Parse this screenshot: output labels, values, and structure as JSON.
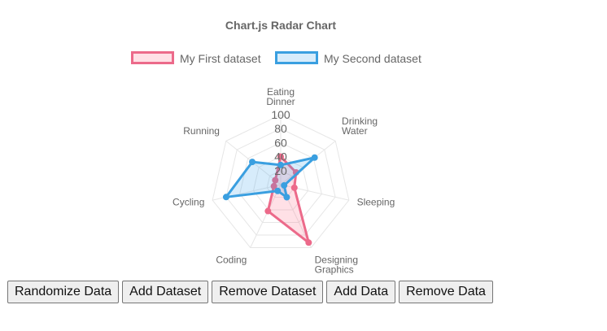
{
  "chart_data": {
    "type": "radar",
    "title": "Chart.js Radar Chart",
    "labels": [
      [
        "Eating",
        "Dinner"
      ],
      [
        "Drinking",
        "Water"
      ],
      [
        "Sleeping"
      ],
      [
        "Designing",
        "Graphics"
      ],
      [
        "Coding"
      ],
      [
        "Cycling"
      ],
      [
        "Running"
      ]
    ],
    "ticks": [
      "20",
      "40",
      "60",
      "80",
      "100"
    ],
    "r_range": [
      0,
      100
    ],
    "legend_position": "top",
    "series": [
      {
        "name": "My First dataset",
        "values": [
          40,
          28,
          20,
          92,
          42,
          10,
          10
        ],
        "color": "#ec6a8a",
        "fill": "rgba(255,99,132,0.2)"
      },
      {
        "name": "My Second dataset",
        "values": [
          28,
          62,
          5,
          20,
          10,
          80,
          52
        ],
        "color": "#3a9fe0",
        "fill": "rgba(54,162,235,0.2)"
      }
    ],
    "grid_color": "#e6e6e6",
    "label_color": "#666666"
  },
  "toolbar": {
    "randomize_label": "Randomize Data",
    "add_dataset_label": "Add Dataset",
    "remove_dataset_label": "Remove Dataset",
    "add_data_label": "Add Data",
    "remove_data_label": "Remove Data"
  }
}
